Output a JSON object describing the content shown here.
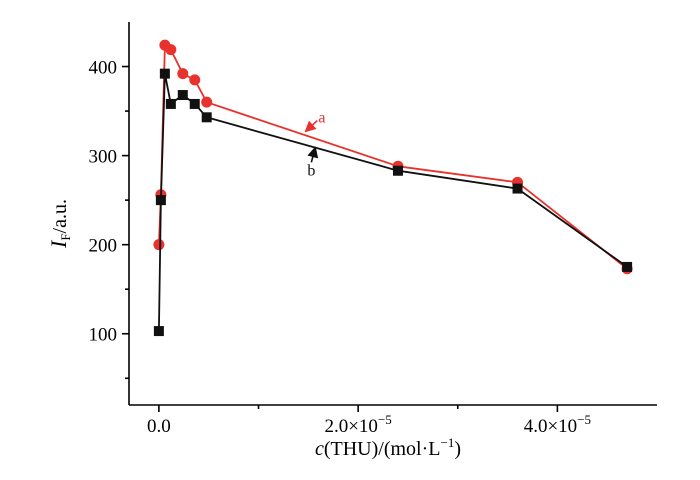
{
  "chart_data": {
    "type": "line",
    "xlabel": {
      "italic": "c",
      "rest": "(THU)/(mol·L",
      "sup": "−1",
      "close": ")"
    },
    "ylabel": {
      "italic": "I",
      "sub": "F",
      "rest": "/a.u."
    },
    "xlim": [
      -3e-06,
      5e-05
    ],
    "ylim": [
      20,
      450
    ],
    "x_major_ticks": [
      0,
      2e-05,
      4e-05
    ],
    "x_tick_labels": [
      {
        "mantissa": "0.0",
        "exp": ""
      },
      {
        "mantissa": "2.0×10",
        "exp": "−5"
      },
      {
        "mantissa": "4.0×10",
        "exp": "−5"
      }
    ],
    "x_minor_ticks": [
      1e-05,
      3e-05
    ],
    "y_major_ticks": [
      100,
      200,
      300,
      400
    ],
    "y_minor_ticks": [
      50,
      150,
      250,
      350
    ],
    "grid": false,
    "series": [
      {
        "name": "a",
        "color": "#e8322d",
        "marker": "circle",
        "x": [
          0,
          2e-07,
          6e-07,
          1.2e-06,
          2.4e-06,
          3.6e-06,
          4.8e-06,
          2.4e-05,
          3.6e-05,
          4.7e-05
        ],
        "y": [
          200,
          256,
          424,
          419,
          392,
          385,
          360,
          288,
          270,
          173
        ]
      },
      {
        "name": "b",
        "color": "#111111",
        "marker": "square",
        "x": [
          0,
          2e-07,
          6e-07,
          1.2e-06,
          2.4e-06,
          3.6e-06,
          4.8e-06,
          2.4e-05,
          3.6e-05,
          4.7e-05
        ],
        "y": [
          103,
          250,
          392,
          358,
          368,
          358,
          343,
          283,
          263,
          175
        ]
      }
    ]
  }
}
